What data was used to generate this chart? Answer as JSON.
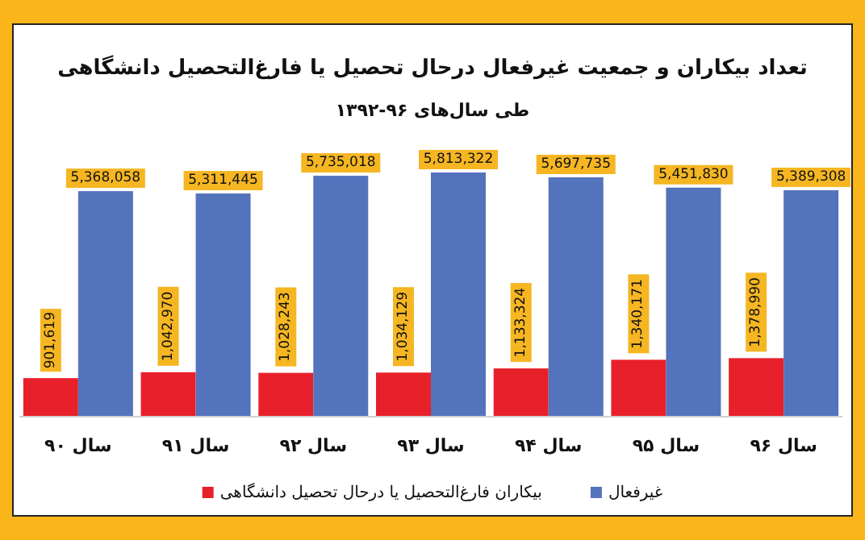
{
  "chart_data": {
    "type": "bar",
    "title": "تعداد بیکاران و جمعیت غیرفعال درحال تحصیل یا فارغ‌التحصیل دانشگاهی",
    "subtitle": "طی سال‌های ۹۶-۱۳۹۲",
    "categories": [
      "سال ۹۰",
      "سال ۹۱",
      "سال ۹۲",
      "سال ۹۳",
      "سال ۹۴",
      "سال ۹۵",
      "سال ۹۶"
    ],
    "series": [
      {
        "name": "بیکاران فارغ‌التحصیل یا درحال تحصیل دانشگاهی",
        "color": "#e8202a",
        "values": [
          901619,
          1042970,
          1028243,
          1034129,
          1133324,
          1340171,
          1378990
        ],
        "value_labels": [
          "901,619",
          "1,042,970",
          "1,028,243",
          "1,034,129",
          "1,133,324",
          "1,340,171",
          "1,378,990"
        ]
      },
      {
        "name": "غیرفعال",
        "color": "#5373bd",
        "values": [
          5368058,
          5311445,
          5735018,
          5813322,
          5697735,
          5451830,
          5389308
        ],
        "value_labels": [
          "5,368,058",
          "5,311,445",
          "5,735,018",
          "5,813,322",
          "5,697,735",
          "5,451,830",
          "5,389,308"
        ]
      }
    ],
    "legend": "bottom"
  }
}
